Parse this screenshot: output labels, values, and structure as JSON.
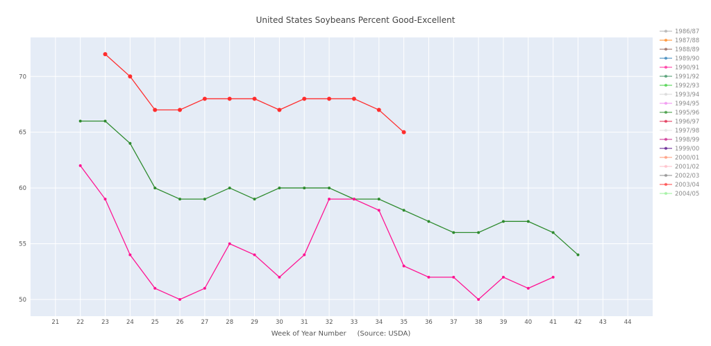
{
  "chart_data": {
    "type": "line",
    "title": "United States Soybeans Percent Good-Excellent",
    "xlabel": "Week of Year Number     (Source: USDA)",
    "ylabel": "",
    "xlim": [
      20,
      45
    ],
    "ylim": [
      48.5,
      73.5
    ],
    "x_ticks": [
      21,
      22,
      23,
      24,
      25,
      26,
      27,
      28,
      29,
      30,
      31,
      32,
      33,
      34,
      35,
      36,
      37,
      38,
      39,
      40,
      41,
      42,
      43,
      44
    ],
    "y_ticks": [
      50,
      55,
      60,
      65,
      70
    ],
    "grid": true,
    "legend_position": "right",
    "series": [
      {
        "name": "1986/87",
        "color": "#a9a9a9",
        "x": [],
        "values": []
      },
      {
        "name": "1987/88",
        "color": "#ff7f0e",
        "x": [],
        "values": []
      },
      {
        "name": "1988/89",
        "color": "#8c564b",
        "x": [],
        "values": []
      },
      {
        "name": "1989/90",
        "color": "#1f77b4",
        "x": [],
        "values": []
      },
      {
        "name": "1990/91",
        "color": "#ff1493",
        "x": [],
        "values": []
      },
      {
        "name": "1991/92",
        "color": "#2e8b57",
        "x": [],
        "values": []
      },
      {
        "name": "1992/93",
        "color": "#32cd32",
        "x": [],
        "values": []
      },
      {
        "name": "1993/94",
        "color": "#d3d3d3",
        "x": [],
        "values": []
      },
      {
        "name": "1994/95",
        "color": "#ee82ee",
        "x": [],
        "values": []
      },
      {
        "name": "1995/96",
        "color": "#228b22",
        "x": [],
        "values": []
      },
      {
        "name": "1996/97",
        "color": "#dc143c",
        "x": [],
        "values": []
      },
      {
        "name": "1997/98",
        "color": "#e0e0e0",
        "x": [],
        "values": []
      },
      {
        "name": "1998/99",
        "color": "#c71585",
        "x": [],
        "values": []
      },
      {
        "name": "1999/00",
        "color": "#4b0082",
        "x": [],
        "values": []
      },
      {
        "name": "2000/01",
        "color": "#ff8c69",
        "x": [],
        "values": []
      },
      {
        "name": "2001/02",
        "color": "#ffb6c1",
        "x": [],
        "values": []
      },
      {
        "name": "2002/03",
        "color": "#808080",
        "x": [],
        "values": []
      },
      {
        "name": "2003/04",
        "color": "#ff2d2d",
        "x": [
          23,
          24,
          25,
          26,
          27,
          28,
          29,
          30,
          31,
          32,
          33,
          34,
          35
        ],
        "values": [
          72,
          70,
          67,
          67,
          68,
          68,
          68,
          67,
          68,
          68,
          68,
          67,
          65
        ]
      },
      {
        "name": "2004/05",
        "color": "#90ee90",
        "x": [],
        "values": []
      }
    ],
    "unlabeled_series": [
      {
        "color": "#2e8b2e",
        "x": [
          22,
          23,
          24,
          25,
          26,
          27,
          28,
          29,
          30,
          31,
          32,
          33,
          34,
          35,
          36,
          37,
          38,
          39,
          40,
          41,
          42
        ],
        "values": [
          66,
          66,
          64,
          60,
          59,
          59,
          60,
          59,
          60,
          60,
          60,
          59,
          59,
          58,
          57,
          56,
          56,
          57,
          57,
          56,
          54
        ]
      },
      {
        "color": "#ff1493",
        "x": [
          22,
          23,
          24,
          25,
          26,
          27,
          28,
          29,
          30,
          31,
          32,
          33,
          34,
          35,
          36,
          37,
          38,
          39,
          40,
          41
        ],
        "values": [
          62,
          59,
          54,
          51,
          50,
          51,
          55,
          54,
          52,
          54,
          59,
          59,
          58,
          53,
          52,
          52,
          50,
          52,
          51,
          52
        ]
      }
    ]
  }
}
